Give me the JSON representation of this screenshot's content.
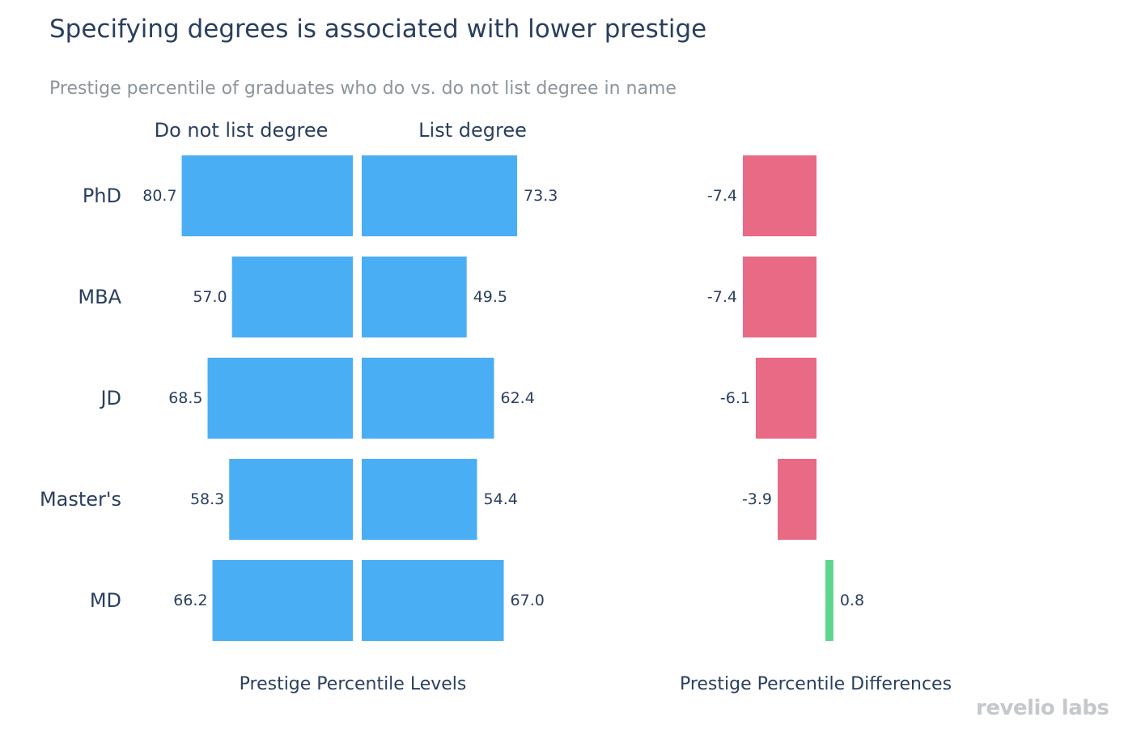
{
  "header": {
    "title": "Specifying degrees is associated with lower prestige",
    "subtitle": "Prestige percentile of graduates who do vs. do not list degree in name"
  },
  "branding": {
    "logo_text": "revelio labs"
  },
  "colors": {
    "levels": "#4aaef4",
    "negative_diff": "#e96a85",
    "positive_diff": "#5dd68b",
    "text": "#2a3f5f"
  },
  "chart_data": [
    {
      "type": "bar",
      "orientation": "horizontal-diverging",
      "xlabel": "Prestige Percentile Levels",
      "categories": [
        "PhD",
        "MBA",
        "JD",
        "Master's",
        "MD"
      ],
      "series": [
        {
          "name": "Do not list degree",
          "values": [
            80.7,
            57.0,
            68.5,
            58.3,
            66.2
          ]
        },
        {
          "name": "List degree",
          "values": [
            73.3,
            49.5,
            62.4,
            54.4,
            67.0
          ]
        }
      ]
    },
    {
      "type": "bar",
      "orientation": "horizontal",
      "xlabel": "Prestige Percentile Differences",
      "categories": [
        "PhD",
        "MBA",
        "JD",
        "Master's",
        "MD"
      ],
      "values": [
        -7.4,
        -7.4,
        -6.1,
        -3.9,
        0.8
      ]
    }
  ]
}
